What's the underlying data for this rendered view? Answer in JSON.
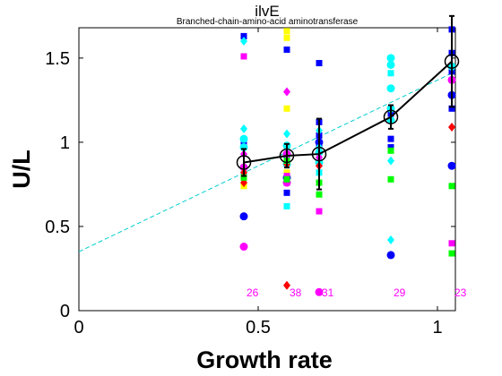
{
  "chart_data": {
    "type": "scatter",
    "title": "ilvE",
    "subtitle": "Branched-chain-amino-acid aminotransferase",
    "xlabel": "Growth rate",
    "ylabel": "U/L",
    "xlim": [
      0,
      1.05
    ],
    "ylim": [
      0,
      1.68
    ],
    "xticks": [
      "0",
      "0.5",
      "1"
    ],
    "yticks": [
      "0",
      "0.5",
      "1",
      "1.5"
    ],
    "grid": false,
    "x_groups": [
      0.46,
      0.58,
      0.67,
      0.87,
      1.04
    ],
    "counts": [
      "26",
      "38",
      "31",
      "29",
      "23"
    ],
    "count_color": "#ff00ff",
    "mean_line": {
      "x": [
        0.46,
        0.58,
        0.67,
        0.87,
        1.04
      ],
      "y": [
        0.88,
        0.92,
        0.93,
        1.15,
        1.48
      ],
      "err": [
        0.08,
        0.07,
        0.21,
        0.07,
        0.27
      ],
      "color": "#000000"
    },
    "fit_line": {
      "x": [
        0,
        1.05
      ],
      "y": [
        0.35,
        1.42
      ],
      "color": "#00ced1"
    },
    "series": [
      {
        "color": "#0000ff",
        "marker": "square",
        "x": [
          0.46,
          0.46,
          0.46,
          0.58,
          0.58,
          0.58,
          0.58,
          0.67,
          0.67,
          0.67,
          0.67,
          0.87,
          0.87,
          0.87,
          1.04,
          1.04,
          1.04,
          1.04
        ],
        "y": [
          1.63,
          1.0,
          0.8,
          1.55,
          0.9,
          0.76,
          0.7,
          1.47,
          1.12,
          1.04,
          0.98,
          1.02,
          0.97,
          1.17,
          1.67,
          1.53,
          1.42,
          1.2
        ]
      },
      {
        "color": "#0000ff",
        "marker": "circle",
        "x": [
          0.46,
          0.58,
          0.67,
          0.87,
          1.04,
          1.04
        ],
        "y": [
          0.56,
          0.79,
          1.0,
          0.33,
          1.28,
          0.86
        ]
      },
      {
        "color": "#00ffff",
        "marker": "circle",
        "x": [
          0.46,
          0.46,
          0.46,
          0.58,
          0.58,
          0.58,
          0.67,
          0.67,
          0.87,
          0.87,
          0.87,
          0.87,
          0.87,
          1.04
        ],
        "y": [
          1.02,
          0.97,
          0.85,
          0.98,
          0.93,
          0.87,
          0.94,
          0.88,
          1.5,
          1.46,
          1.32,
          1.2,
          1.13,
          1.45
        ]
      },
      {
        "color": "#00ffff",
        "marker": "diamond",
        "x": [
          0.46,
          0.46,
          0.58,
          0.58,
          0.67,
          0.67,
          0.87,
          0.87,
          1.04
        ],
        "y": [
          1.6,
          1.08,
          1.05,
          0.97,
          1.07,
          0.97,
          0.89,
          0.42,
          1.37
        ]
      },
      {
        "color": "#00ffff",
        "marker": "square",
        "x": [
          0.46,
          0.58,
          0.67,
          0.87
        ],
        "y": [
          0.81,
          0.62,
          0.82,
          1.41
        ]
      },
      {
        "color": "#ffff00",
        "marker": "square",
        "x": [
          0.46,
          0.58,
          0.58,
          0.58,
          0.58
        ],
        "y": [
          0.74,
          1.66,
          1.62,
          1.2,
          0.82
        ]
      },
      {
        "color": "#ff00ff",
        "marker": "circle",
        "x": [
          0.46,
          0.46,
          0.58,
          0.58,
          0.67,
          1.04
        ],
        "y": [
          0.38,
          0.85,
          0.76,
          0.93,
          0.11,
          1.37
        ]
      },
      {
        "color": "#ff00ff",
        "marker": "square",
        "x": [
          0.46,
          0.58,
          0.67,
          1.04
        ],
        "y": [
          1.51,
          0.8,
          0.59,
          0.4
        ]
      },
      {
        "color": "#ff00ff",
        "marker": "diamond",
        "x": [
          0.46,
          0.58,
          0.67
        ],
        "y": [
          0.93,
          1.3,
          0.91
        ]
      },
      {
        "color": "#ff0000",
        "marker": "diamond",
        "x": [
          0.46,
          0.46,
          0.58,
          0.58,
          0.67,
          1.04
        ],
        "y": [
          0.82,
          0.76,
          0.15,
          0.87,
          0.86,
          1.09
        ]
      },
      {
        "color": "#00ff00",
        "marker": "square",
        "x": [
          0.46,
          0.58,
          0.58,
          0.67,
          0.67,
          0.87,
          0.87,
          1.04,
          1.04
        ],
        "y": [
          0.79,
          0.89,
          0.78,
          0.69,
          0.76,
          0.95,
          0.78,
          0.74,
          0.34
        ]
      }
    ]
  }
}
